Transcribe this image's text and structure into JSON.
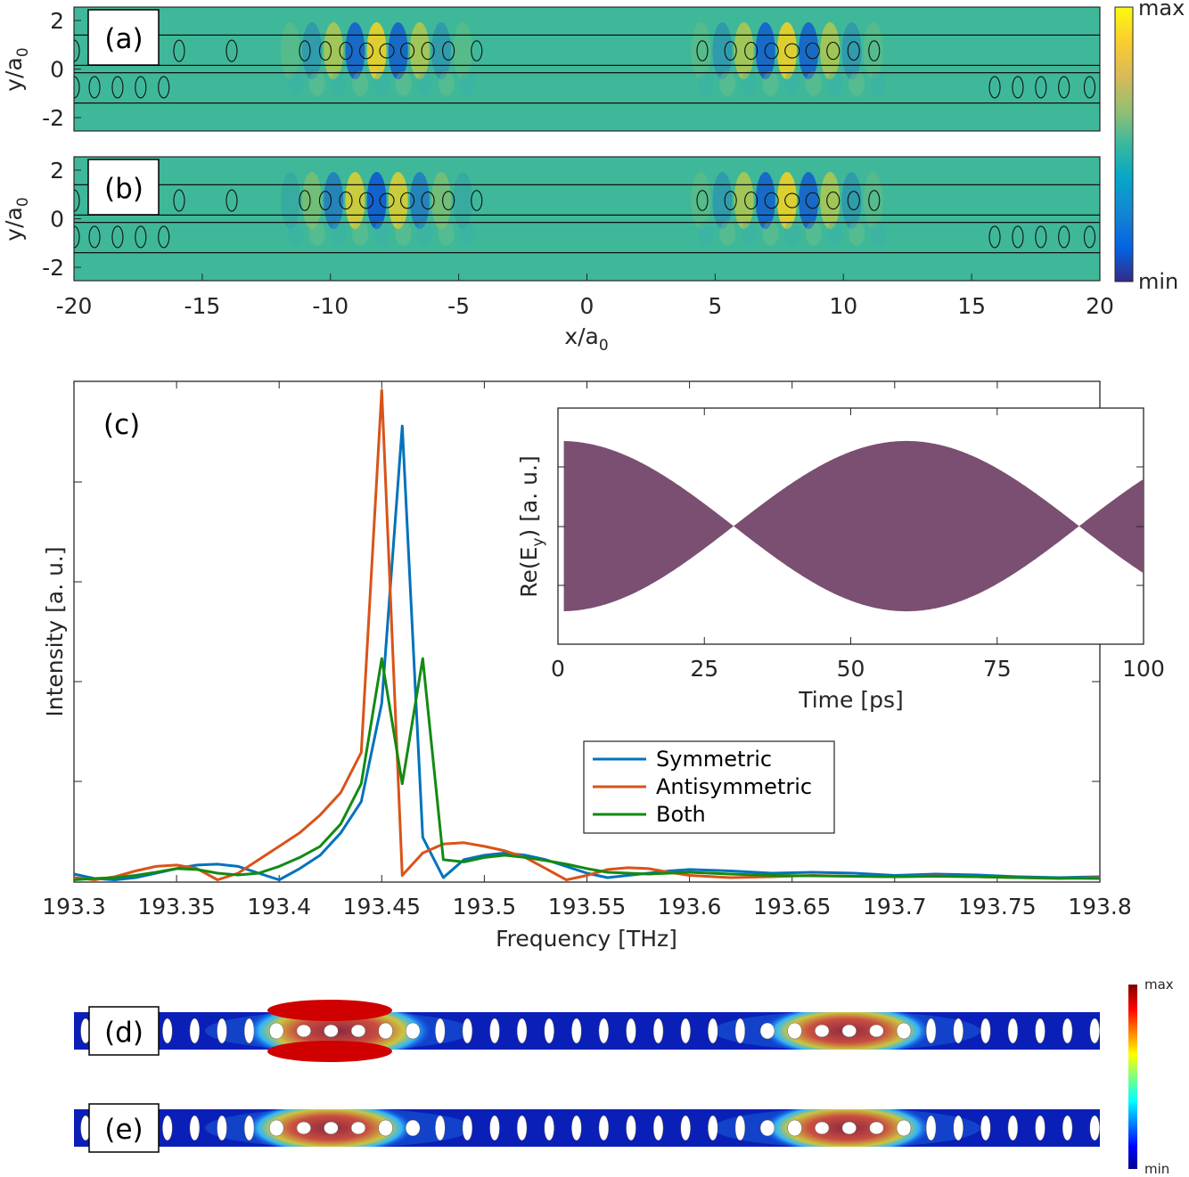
{
  "colors": {
    "symmetric": "#0072BD",
    "antisymmetric": "#D95319",
    "both": "#138A13",
    "inset_fill": "#7A4F71",
    "field_background": "#3FB89A"
  },
  "field_maps": {
    "panels": [
      {
        "label": "(a)",
        "pattern": "in-phase"
      },
      {
        "label": "(b)",
        "pattern": "anti-phase"
      }
    ],
    "y_axis_label": "y/a",
    "y_axis_label_sub": "0",
    "y_ticks": [
      2,
      0,
      -2
    ],
    "x_axis_label": "x/a",
    "x_axis_label_sub": "0",
    "x_ticks": [
      -20,
      -15,
      -10,
      -5,
      0,
      5,
      10,
      15,
      20
    ],
    "colorbar": {
      "max_label": "max",
      "min_label": "min"
    }
  },
  "chart_data": [
    {
      "type": "line",
      "title": "(c)",
      "xlabel": "Frequency [THz]",
      "ylabel": "Intensity [a. u.]",
      "xlim": [
        193.3,
        193.8
      ],
      "ylim": [
        0,
        1.1
      ],
      "x_ticks": [
        193.3,
        193.35,
        193.4,
        193.45,
        193.5,
        193.55,
        193.6,
        193.65,
        193.7,
        193.75,
        193.8
      ],
      "x_tick_labels": [
        "193.3",
        "193.35",
        "193.4",
        "193.45",
        "193.5",
        "193.55",
        "193.6",
        "193.65",
        "193.7",
        "193.75",
        "193.8"
      ],
      "legend_position": "center-right",
      "series": [
        {
          "name": "Symmetric",
          "x": [
            193.3,
            193.31,
            193.32,
            193.33,
            193.34,
            193.35,
            193.36,
            193.37,
            193.38,
            193.39,
            193.4,
            193.41,
            193.42,
            193.43,
            193.44,
            193.45,
            193.46,
            193.47,
            193.48,
            193.49,
            193.5,
            193.51,
            193.52,
            193.53,
            193.54,
            193.55,
            193.56,
            193.57,
            193.58,
            193.59,
            193.6,
            193.62,
            193.64,
            193.66,
            193.68,
            193.7,
            193.72,
            193.74,
            193.76,
            193.78,
            193.8
          ],
          "y": [
            0.018,
            0.008,
            0.005,
            0.01,
            0.02,
            0.03,
            0.038,
            0.04,
            0.035,
            0.02,
            0.005,
            0.03,
            0.06,
            0.11,
            0.18,
            0.4,
            1.02,
            0.1,
            0.01,
            0.05,
            0.06,
            0.065,
            0.06,
            0.05,
            0.035,
            0.02,
            0.01,
            0.015,
            0.02,
            0.025,
            0.028,
            0.025,
            0.02,
            0.022,
            0.02,
            0.015,
            0.018,
            0.016,
            0.012,
            0.01,
            0.012
          ]
        },
        {
          "name": "Antisymmetric",
          "x": [
            193.3,
            193.31,
            193.32,
            193.33,
            193.34,
            193.35,
            193.36,
            193.37,
            193.38,
            193.39,
            193.4,
            193.41,
            193.42,
            193.43,
            193.44,
            193.45,
            193.46,
            193.47,
            193.48,
            193.49,
            193.5,
            193.51,
            193.52,
            193.53,
            193.54,
            193.55,
            193.56,
            193.57,
            193.58,
            193.59,
            193.6,
            193.62,
            193.64,
            193.66,
            193.68,
            193.7,
            193.72,
            193.74,
            193.76,
            193.78,
            193.8
          ],
          "y": [
            0.01,
            0.005,
            0.012,
            0.025,
            0.035,
            0.038,
            0.03,
            0.005,
            0.02,
            0.05,
            0.08,
            0.11,
            0.15,
            0.2,
            0.29,
            1.1,
            0.015,
            0.065,
            0.085,
            0.088,
            0.08,
            0.07,
            0.055,
            0.03,
            0.005,
            0.015,
            0.028,
            0.032,
            0.03,
            0.022,
            0.015,
            0.01,
            0.012,
            0.015,
            0.013,
            0.012,
            0.014,
            0.012,
            0.01,
            0.008,
            0.01
          ]
        },
        {
          "name": "Both",
          "x": [
            193.3,
            193.31,
            193.32,
            193.33,
            193.34,
            193.35,
            193.36,
            193.37,
            193.38,
            193.39,
            193.4,
            193.41,
            193.42,
            193.43,
            193.44,
            193.45,
            193.46,
            193.47,
            193.48,
            193.49,
            193.5,
            193.51,
            193.52,
            193.53,
            193.54,
            193.55,
            193.56,
            193.57,
            193.58,
            193.59,
            193.6,
            193.62,
            193.64,
            193.66,
            193.68,
            193.7,
            193.72,
            193.74,
            193.76,
            193.78,
            193.8
          ],
          "y": [
            0.005,
            0.008,
            0.01,
            0.015,
            0.022,
            0.03,
            0.028,
            0.02,
            0.016,
            0.02,
            0.035,
            0.055,
            0.08,
            0.13,
            0.22,
            0.5,
            0.22,
            0.5,
            0.05,
            0.045,
            0.055,
            0.06,
            0.055,
            0.048,
            0.04,
            0.03,
            0.022,
            0.02,
            0.018,
            0.02,
            0.022,
            0.018,
            0.015,
            0.014,
            0.013,
            0.012,
            0.013,
            0.012,
            0.01,
            0.009,
            0.008
          ]
        }
      ]
    },
    {
      "type": "area",
      "title": "inset",
      "xlabel": "Time [ps]",
      "ylabel": "Re(E",
      "ylabel_sub": "y",
      "ylabel_end": ") [a. u.]",
      "xlim": [
        0,
        100
      ],
      "ylim": [
        -1.22,
        1.22
      ],
      "x_ticks": [
        0,
        25,
        50,
        75,
        100
      ],
      "envelope": {
        "description": "beating envelope |cos(pi*(t-t0)/T)|",
        "period_ps": 59,
        "peak_time_ps": 59.5,
        "amplitude": 0.88,
        "start_ps": 1
      }
    }
  ],
  "mode_profiles": {
    "panels": [
      {
        "label": "(d)",
        "pattern": "strong-left"
      },
      {
        "label": "(e)",
        "pattern": "symmetric"
      }
    ],
    "colorbar": {
      "max_label": "max",
      "min_label": "min"
    }
  }
}
